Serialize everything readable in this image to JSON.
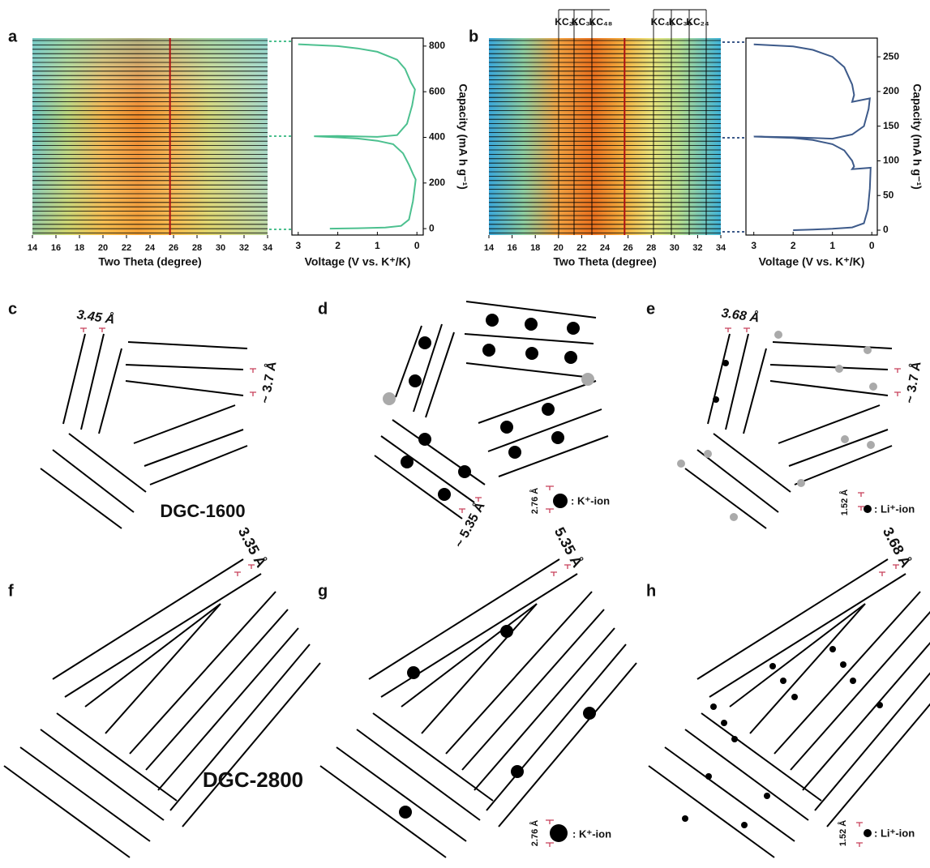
{
  "panels": {
    "a": {
      "label": "a",
      "xrd": {
        "xlabel": "Two Theta (degree)",
        "xlim": [
          14,
          34
        ],
        "xticks": [
          14,
          16,
          18,
          20,
          22,
          24,
          26,
          28,
          30,
          32,
          34
        ]
      },
      "curve": {
        "xlabel": "Voltage (V vs. K⁺/K)",
        "ylabel": "Capacity (mA h g⁻¹)",
        "color": "#4cc08f",
        "xlim": [
          3.16,
          -0.16
        ],
        "xticks": [
          3,
          2,
          1,
          0
        ],
        "ylim": [
          -28,
          835
        ],
        "yticks": [
          0,
          200,
          400,
          600,
          800
        ],
        "voltage": [
          2.2,
          1.5,
          0.8,
          0.4,
          0.2,
          0.1,
          0.04,
          0.03,
          0.1,
          0.2,
          0.35,
          0.6,
          1,
          1.5,
          2,
          2.6,
          2,
          1,
          0.5,
          0.25,
          0.12,
          0.05,
          0.15,
          0.3,
          0.5,
          1,
          1.5,
          2,
          3
        ],
        "capacity": [
          0,
          2,
          5,
          12,
          40,
          120,
          200,
          215,
          240,
          280,
          330,
          370,
          385,
          395,
          400,
          405,
          406,
          402,
          410,
          460,
          540,
          610,
          640,
          700,
          740,
          775,
          790,
          800,
          808
        ]
      }
    },
    "b": {
      "label": "b",
      "xrd": {
        "xlabel": "Two Theta (degree)",
        "xlim": [
          14,
          34
        ],
        "xticks": [
          14,
          16,
          18,
          20,
          22,
          24,
          26,
          28,
          30,
          32,
          34
        ]
      },
      "phases": [
        "KC₂₄",
        "KC₃₆",
        "KC₄₈",
        "KC₄₈",
        "KC₃₆",
        "KC₂₄"
      ],
      "curve": {
        "xlabel": "Voltage (V vs. K⁺/K)",
        "ylabel": "Capacity (mA h g⁻¹)",
        "color": "#3d5a8a",
        "xlim": [
          3.2,
          -0.14
        ],
        "xticks": [
          3,
          2,
          1,
          0
        ],
        "ylim": [
          -7,
          277
        ],
        "yticks": [
          0,
          50,
          100,
          150,
          200,
          250
        ],
        "voltage": [
          2,
          1.5,
          1,
          0.5,
          0.2,
          0.1,
          0.05,
          0.03,
          0.5,
          0.45,
          0.5,
          0.7,
          1,
          1.5,
          2,
          3,
          2,
          1,
          0.5,
          0.2,
          0.08,
          0.05,
          0.5,
          0.45,
          0.5,
          0.7,
          1,
          1.5,
          2,
          3
        ],
        "capacity": [
          0,
          1,
          2,
          4,
          10,
          30,
          60,
          90,
          88,
          92,
          100,
          115,
          124,
          130,
          133,
          135,
          134,
          132,
          138,
          150,
          175,
          190,
          185,
          195,
          210,
          235,
          250,
          260,
          265,
          268
        ]
      }
    },
    "c": {
      "label": "c",
      "spacing_1": "3.45 Å",
      "spacing_2": "~ 3.7 Å",
      "sample": "DGC-1600"
    },
    "d": {
      "label": "d",
      "spacing": "~ 5.35 Å",
      "ion_size": "2.76 Å",
      "ion": ": K⁺-ion"
    },
    "e": {
      "label": "e",
      "spacing_1": "3.68 Å",
      "spacing_2": "~ 3.7 Å",
      "ion_size": "1.52 Å",
      "ion": ": Li⁺-ion"
    },
    "f": {
      "label": "f",
      "spacing": "3.35 Å",
      "sample": "DGC-2800"
    },
    "g": {
      "label": "g",
      "spacing": "5.35 Å",
      "ion_size": "2.76 Å",
      "ion": ": K⁺-ion"
    },
    "h": {
      "label": "h",
      "spacing": "3.68 Å",
      "ion_size": "1.52 Å",
      "ion": ": Li⁺-ion"
    }
  }
}
